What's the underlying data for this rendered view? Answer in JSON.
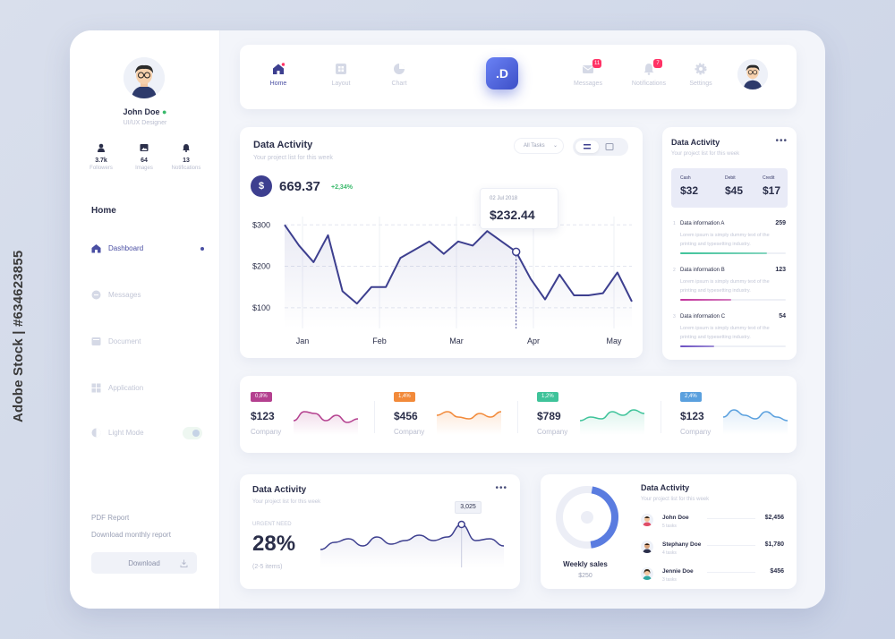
{
  "watermark": "Adobe Stock | #634623855",
  "sidebar": {
    "user": {
      "name": "John Doe",
      "role": "UI/UX Designer"
    },
    "stats": [
      {
        "value": "3.7k",
        "label": "Followers",
        "icon": "user-icon"
      },
      {
        "value": "64",
        "label": "Images",
        "icon": "image-icon"
      },
      {
        "value": "13",
        "label": "Notifications",
        "icon": "bell-icon"
      }
    ],
    "section_title": "Home",
    "nav": [
      {
        "label": "Dashboard",
        "icon": "home-icon",
        "active": true
      },
      {
        "label": "Messages",
        "icon": "message-icon",
        "active": false
      },
      {
        "label": "Document",
        "icon": "document-icon",
        "active": false
      },
      {
        "label": "Application",
        "icon": "grid-icon",
        "active": false
      },
      {
        "label": "Light Mode",
        "icon": "contrast-icon",
        "active": false
      }
    ],
    "pdf_report": "PDF Report",
    "download_monthly": "Download monthly report",
    "download_button": "Download"
  },
  "topnav": {
    "items": [
      {
        "label": "Home",
        "icon": "home-icon",
        "active": true
      },
      {
        "label": "Layout",
        "icon": "layout-icon",
        "active": false
      },
      {
        "label": "Chart",
        "icon": "pie-chart-icon",
        "active": false
      }
    ],
    "logo_text": ".D",
    "right_items": [
      {
        "label": "Messages",
        "icon": "mail-icon",
        "badge": "11"
      },
      {
        "label": "Notifications",
        "icon": "bell-icon",
        "badge": "7"
      },
      {
        "label": "Settings",
        "icon": "gear-icon",
        "badge": ""
      }
    ]
  },
  "main_chart": {
    "title": "Data Activity",
    "subtitle": "Your project list for this week",
    "balance": "669.37",
    "change": "+2,34%",
    "filter": "All Tasks",
    "tooltip_date": "02 Jul 2018",
    "tooltip_value": "$232.44"
  },
  "chart_data": {
    "type": "line",
    "title": "Data Activity",
    "x_ticks": [
      "Jan",
      "Feb",
      "Mar",
      "Apr",
      "May"
    ],
    "y_ticks": [
      "$300",
      "$200",
      "$100"
    ],
    "ylim": [
      50,
      320
    ],
    "series": [
      {
        "values": [
          300,
          250,
          210,
          275,
          140,
          110,
          150,
          150,
          220,
          240,
          260,
          230,
          260,
          250,
          285,
          260,
          235,
          170,
          120,
          180,
          130,
          130,
          135,
          185,
          115
        ]
      }
    ],
    "highlight_index": 16,
    "grid": true
  },
  "right_card": {
    "title": "Data Activity",
    "subtitle": "Your project list for this week",
    "cash_label": "Cash",
    "cash": "$32",
    "debit_label": "Debit",
    "debit": "$45",
    "credit_label": "Credit",
    "credit": "$17",
    "items": [
      {
        "num": "1",
        "title": "Data information A",
        "value": "259",
        "desc": "Lorem ipsum is simply dummy text of the printing and typesetting industry.",
        "progress": 0.82,
        "color": "#3fc39a"
      },
      {
        "num": "2",
        "title": "Data information B",
        "value": "123",
        "desc": "Lorem ipsum is simply dummy text of the printing and typesetting industry.",
        "progress": 0.48,
        "color": "#c2319a"
      },
      {
        "num": "3",
        "title": "Data information C",
        "value": "54",
        "desc": "Lorem ipsum is simply dummy text of the printing and typesetting industry.",
        "progress": 0.32,
        "color": "#6b4fc2"
      }
    ]
  },
  "metrics": [
    {
      "badge": "0,8%",
      "value": "$123",
      "label": "Company",
      "color": "#b4408f",
      "spark": [
        20,
        10,
        12,
        20,
        14,
        22,
        18
      ]
    },
    {
      "badge": "1,4%",
      "value": "$456",
      "label": "Company",
      "color": "#f28a3a",
      "spark": [
        14,
        10,
        16,
        18,
        12,
        16,
        10
      ]
    },
    {
      "badge": "1,2%",
      "value": "$789",
      "label": "Company",
      "color": "#3fc39a",
      "spark": [
        20,
        16,
        18,
        10,
        14,
        8,
        12
      ]
    },
    {
      "badge": "2,4%",
      "value": "$123",
      "label": "Company",
      "color": "#5aa0de",
      "spark": [
        16,
        8,
        14,
        18,
        10,
        16,
        20
      ]
    }
  ],
  "bottom_left": {
    "title": "Data Activity",
    "subtitle": "Your project list for this week",
    "urgent": "URGENT NEED",
    "percent": "28%",
    "items": "(2-5 items)",
    "tooltip": "3,025",
    "spark": [
      40,
      32,
      28,
      36,
      26,
      34,
      30,
      24,
      30,
      26,
      12,
      30,
      28,
      36
    ]
  },
  "bottom_right": {
    "title": "Data Activity",
    "subtitle": "Your project list for this week",
    "weekly_label": "Weekly sales",
    "weekly_value": "$250",
    "weekly_fraction": 0.45,
    "people": [
      {
        "name": "John Doe",
        "tasks": "5 tasks",
        "value": "$2,456"
      },
      {
        "name": "Stephany Doe",
        "tasks": "4 tasks",
        "value": "$1,780"
      },
      {
        "name": "Jennie Doe",
        "tasks": "3 tasks",
        "value": "$456"
      }
    ]
  }
}
